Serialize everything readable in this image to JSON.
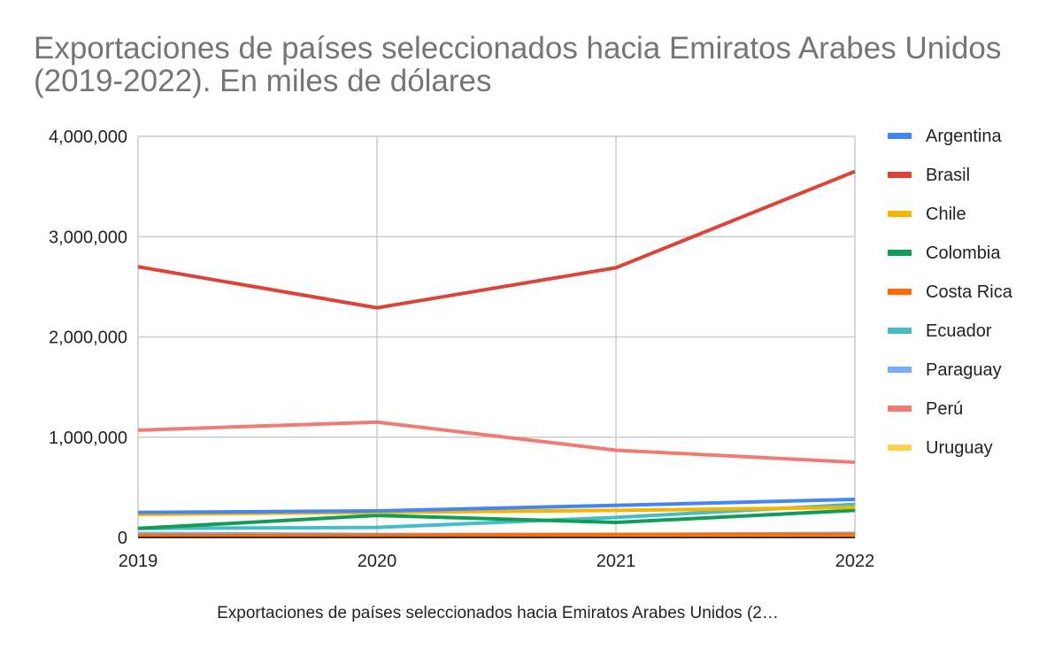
{
  "chart_data": {
    "type": "line",
    "title": "Exportaciones de países seleccionados hacia Emiratos Arabes Unidos (2019-2022). En miles de dólares",
    "xlabel": "Exportaciones de países seleccionados hacia Emiratos Arabes Unidos (2…",
    "ylabel": "",
    "x": [
      "2019",
      "2020",
      "2021",
      "2022"
    ],
    "ylim": [
      0,
      4000000
    ],
    "yticks": [
      "0",
      "1,000,000",
      "2,000,000",
      "3,000,000",
      "4,000,000"
    ],
    "grid": true,
    "legend": "right",
    "series": [
      {
        "name": "Argentina",
        "color": "#4285f4",
        "values": [
          250000,
          265000,
          320000,
          380000
        ]
      },
      {
        "name": "Brasil",
        "color": "#db4437",
        "values": [
          2700000,
          2290000,
          2690000,
          3650000
        ]
      },
      {
        "name": "Chile",
        "color": "#f4b400",
        "values": [
          230000,
          250000,
          270000,
          300000
        ]
      },
      {
        "name": "Colombia",
        "color": "#0f9d58",
        "values": [
          90000,
          220000,
          150000,
          270000
        ]
      },
      {
        "name": "Costa Rica",
        "color": "#ff6d01",
        "values": [
          20000,
          20000,
          30000,
          30000
        ]
      },
      {
        "name": "Ecuador",
        "color": "#46bdc6",
        "values": [
          90000,
          100000,
          200000,
          330000
        ]
      },
      {
        "name": "Paraguay",
        "color": "#7baaf7",
        "values": [
          40000,
          30000,
          30000,
          40000
        ]
      },
      {
        "name": "Perú",
        "color": "#f07b72",
        "values": [
          1070000,
          1150000,
          870000,
          750000
        ]
      },
      {
        "name": "Uruguay",
        "color": "#fcd04f",
        "values": [
          10000,
          10000,
          10000,
          15000
        ]
      }
    ]
  }
}
